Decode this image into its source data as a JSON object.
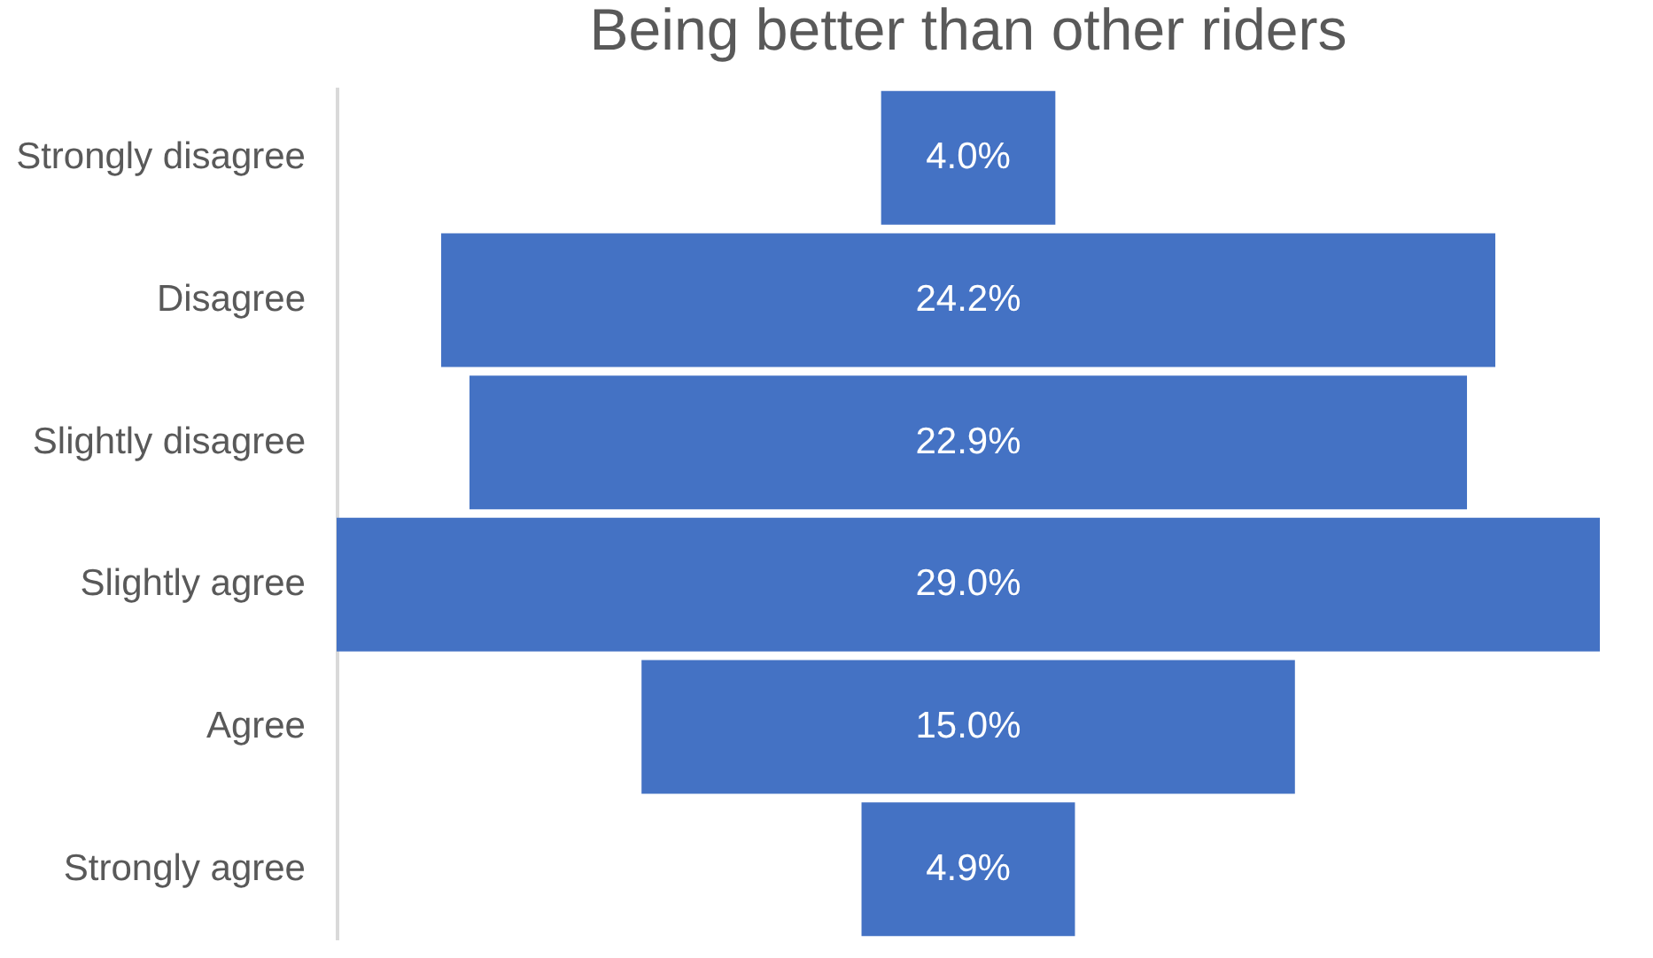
{
  "chart_data": {
    "type": "other",
    "title": "Being better than other riders",
    "categories": [
      "Strongly disagree",
      "Disagree",
      "Slightly disagree",
      "Slightly agree",
      "Agree",
      "Strongly agree"
    ],
    "values": [
      4.0,
      24.2,
      22.9,
      29.0,
      15.0,
      4.9
    ],
    "value_labels": [
      "4.0%",
      "24.2%",
      "22.9%",
      "29.0%",
      "15.0%",
      "4.9%"
    ],
    "color": "#4472c4"
  }
}
